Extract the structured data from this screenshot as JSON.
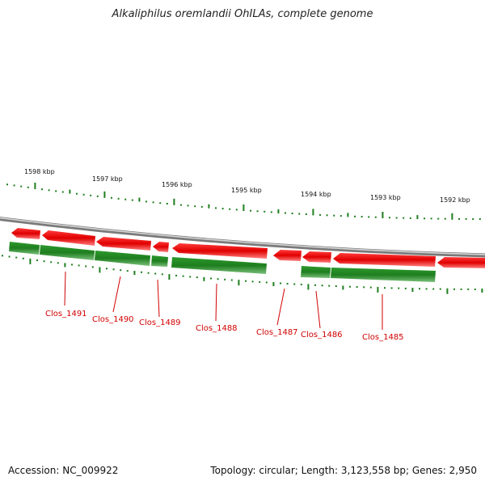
{
  "title": "Alkaliphilus oremlandii OhILAs, complete genome",
  "footer": {
    "accession": "Accession: NC_009922",
    "summary": "Topology: circular; Length: 3,123,558 bp; Genes: 2,950"
  },
  "colors": {
    "forward_strand": "#e00000",
    "reverse_strand": "#1e7e1e",
    "backbone": "#9a9a9a",
    "label": "#d00000",
    "ticks": "#1e7e1e"
  },
  "kbp_ticks": [
    "1598 kbp",
    "1597 kbp",
    "1596 kbp",
    "1595 kbp",
    "1594 kbp",
    "1593 kbp",
    "1592 kbp"
  ],
  "gene_labels": [
    "Clos_1491",
    "Clos_1490",
    "Clos_1489",
    "Clos_1488",
    "Clos_1487",
    "Clos_1486",
    "Clos_1485"
  ]
}
